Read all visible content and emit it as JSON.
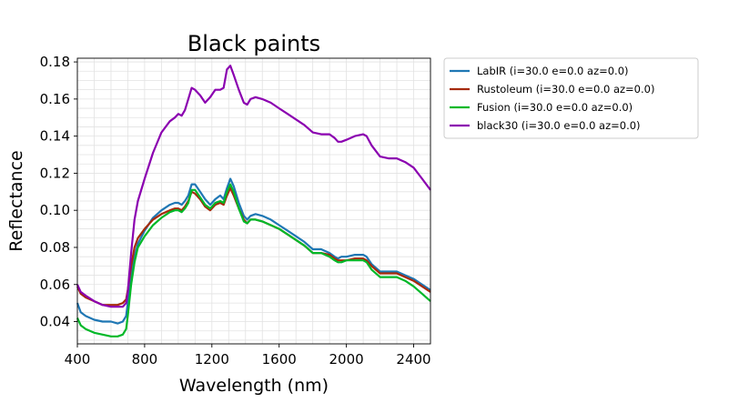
{
  "chart_data": {
    "type": "line",
    "title": "Black paints",
    "xlabel": "Wavelength (nm)",
    "ylabel": "Reflectance",
    "xlim": [
      400,
      2500
    ],
    "ylim": [
      0.028,
      0.182
    ],
    "xticks": [
      400,
      800,
      1200,
      1600,
      2000,
      2400
    ],
    "xtick_labels": [
      "400",
      "800",
      "1200",
      "1600",
      "2000",
      "2400"
    ],
    "yticks": [
      0.04,
      0.06,
      0.08,
      0.1,
      0.12,
      0.14,
      0.16,
      0.18
    ],
    "ytick_labels": [
      "0.04",
      "0.06",
      "0.08",
      "0.10",
      "0.12",
      "0.14",
      "0.16",
      "0.18"
    ],
    "grid": true,
    "legend_position": "outside-upper-right",
    "series": [
      {
        "name": "LabIR  (i=30.0 e=0.0 az=0.0)",
        "color": "#1f77b4",
        "x": [
          400,
          420,
          450,
          500,
          550,
          600,
          640,
          670,
          690,
          700,
          720,
          740,
          760,
          800,
          850,
          900,
          950,
          980,
          1000,
          1020,
          1040,
          1060,
          1080,
          1100,
          1130,
          1160,
          1190,
          1220,
          1250,
          1270,
          1290,
          1310,
          1330,
          1360,
          1390,
          1410,
          1430,
          1460,
          1500,
          1550,
          1600,
          1650,
          1700,
          1750,
          1800,
          1850,
          1900,
          1930,
          1950,
          1970,
          2000,
          2050,
          2100,
          2120,
          2150,
          2200,
          2250,
          2300,
          2350,
          2400,
          2450,
          2500
        ],
        "y": [
          0.05,
          0.045,
          0.043,
          0.041,
          0.04,
          0.04,
          0.039,
          0.04,
          0.043,
          0.05,
          0.065,
          0.075,
          0.082,
          0.089,
          0.096,
          0.1,
          0.103,
          0.104,
          0.104,
          0.103,
          0.105,
          0.108,
          0.114,
          0.114,
          0.11,
          0.106,
          0.103,
          0.106,
          0.108,
          0.106,
          0.112,
          0.117,
          0.113,
          0.104,
          0.097,
          0.095,
          0.097,
          0.098,
          0.097,
          0.095,
          0.092,
          0.089,
          0.086,
          0.083,
          0.079,
          0.079,
          0.077,
          0.075,
          0.074,
          0.075,
          0.075,
          0.076,
          0.076,
          0.075,
          0.071,
          0.067,
          0.067,
          0.067,
          0.065,
          0.063,
          0.06,
          0.057
        ]
      },
      {
        "name": "Rustoleum  (i=30.0 e=0.0 az=0.0)",
        "color": "#a52a0a",
        "x": [
          400,
          420,
          450,
          500,
          550,
          600,
          640,
          670,
          690,
          700,
          720,
          740,
          760,
          800,
          850,
          900,
          950,
          980,
          1000,
          1020,
          1040,
          1060,
          1080,
          1100,
          1130,
          1160,
          1190,
          1220,
          1250,
          1270,
          1290,
          1310,
          1330,
          1360,
          1390,
          1410,
          1430,
          1460,
          1500,
          1550,
          1600,
          1650,
          1700,
          1750,
          1800,
          1850,
          1900,
          1930,
          1950,
          1970,
          2000,
          2050,
          2100,
          2120,
          2150,
          2200,
          2250,
          2300,
          2350,
          2400,
          2450,
          2500
        ],
        "y": [
          0.059,
          0.055,
          0.053,
          0.051,
          0.049,
          0.049,
          0.049,
          0.05,
          0.052,
          0.057,
          0.07,
          0.08,
          0.085,
          0.09,
          0.095,
          0.098,
          0.1,
          0.101,
          0.101,
          0.1,
          0.102,
          0.105,
          0.11,
          0.109,
          0.106,
          0.102,
          0.1,
          0.103,
          0.104,
          0.103,
          0.108,
          0.112,
          0.108,
          0.101,
          0.095,
          0.093,
          0.095,
          0.095,
          0.094,
          0.092,
          0.09,
          0.087,
          0.084,
          0.081,
          0.077,
          0.077,
          0.076,
          0.074,
          0.073,
          0.073,
          0.073,
          0.074,
          0.074,
          0.073,
          0.07,
          0.066,
          0.066,
          0.066,
          0.064,
          0.062,
          0.059,
          0.056
        ]
      },
      {
        "name": "Fusion  (i=30.0 e=0.0 az=0.0)",
        "color": "#00b828",
        "x": [
          400,
          420,
          450,
          500,
          550,
          600,
          640,
          670,
          690,
          700,
          720,
          740,
          760,
          800,
          850,
          900,
          950,
          980,
          1000,
          1020,
          1040,
          1060,
          1080,
          1100,
          1130,
          1160,
          1190,
          1220,
          1250,
          1270,
          1290,
          1310,
          1330,
          1360,
          1390,
          1410,
          1430,
          1460,
          1500,
          1550,
          1600,
          1650,
          1700,
          1750,
          1800,
          1850,
          1900,
          1930,
          1950,
          1970,
          2000,
          2050,
          2100,
          2120,
          2150,
          2200,
          2250,
          2300,
          2350,
          2400,
          2450,
          2500
        ],
        "y": [
          0.042,
          0.038,
          0.036,
          0.034,
          0.033,
          0.032,
          0.032,
          0.033,
          0.036,
          0.043,
          0.06,
          0.072,
          0.08,
          0.086,
          0.092,
          0.096,
          0.099,
          0.1,
          0.1,
          0.099,
          0.101,
          0.104,
          0.111,
          0.111,
          0.107,
          0.103,
          0.101,
          0.104,
          0.105,
          0.104,
          0.11,
          0.114,
          0.11,
          0.101,
          0.094,
          0.093,
          0.095,
          0.095,
          0.094,
          0.092,
          0.09,
          0.087,
          0.084,
          0.081,
          0.077,
          0.077,
          0.075,
          0.073,
          0.072,
          0.072,
          0.073,
          0.073,
          0.073,
          0.072,
          0.068,
          0.064,
          0.064,
          0.064,
          0.062,
          0.059,
          0.055,
          0.051
        ]
      },
      {
        "name": "black30  (i=30.0 e=0.0 az=0.0)",
        "color": "#8b00b0",
        "x": [
          400,
          420,
          450,
          500,
          550,
          600,
          640,
          670,
          690,
          700,
          720,
          740,
          760,
          800,
          850,
          900,
          950,
          980,
          1000,
          1020,
          1040,
          1060,
          1080,
          1100,
          1130,
          1160,
          1190,
          1220,
          1250,
          1270,
          1290,
          1310,
          1330,
          1360,
          1390,
          1410,
          1430,
          1460,
          1500,
          1550,
          1600,
          1650,
          1700,
          1750,
          1800,
          1850,
          1900,
          1930,
          1950,
          1970,
          2000,
          2050,
          2100,
          2120,
          2150,
          2200,
          2250,
          2300,
          2350,
          2400,
          2450,
          2500
        ],
        "y": [
          0.06,
          0.056,
          0.054,
          0.051,
          0.049,
          0.048,
          0.048,
          0.048,
          0.05,
          0.056,
          0.077,
          0.095,
          0.105,
          0.117,
          0.131,
          0.142,
          0.148,
          0.15,
          0.152,
          0.151,
          0.154,
          0.16,
          0.166,
          0.165,
          0.162,
          0.158,
          0.161,
          0.165,
          0.165,
          0.166,
          0.176,
          0.178,
          0.173,
          0.165,
          0.158,
          0.157,
          0.16,
          0.161,
          0.16,
          0.158,
          0.155,
          0.152,
          0.149,
          0.146,
          0.142,
          0.141,
          0.141,
          0.139,
          0.137,
          0.137,
          0.138,
          0.14,
          0.141,
          0.14,
          0.135,
          0.129,
          0.128,
          0.128,
          0.126,
          0.123,
          0.117,
          0.111
        ]
      }
    ]
  }
}
